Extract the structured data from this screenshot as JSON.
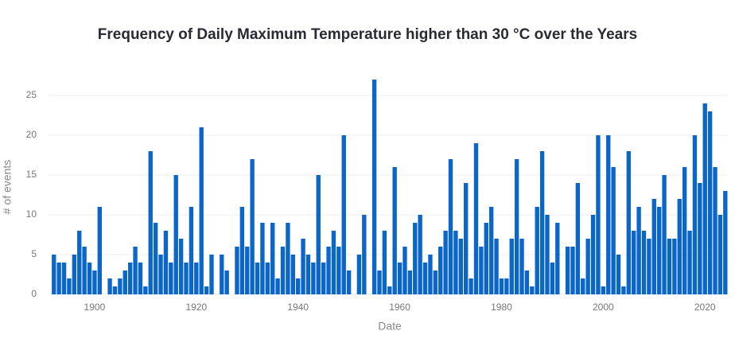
{
  "chart_data": {
    "type": "bar",
    "title": "Frequency of Daily Maximum Temperature higher than 30 °C  over the Years",
    "x_label": "Date",
    "y_label": "# of events",
    "color": "#0a66c8",
    "x": [
      1892,
      1893,
      1894,
      1895,
      1896,
      1897,
      1898,
      1899,
      1900,
      1901,
      1903,
      1904,
      1905,
      1906,
      1907,
      1908,
      1909,
      1910,
      1911,
      1912,
      1913,
      1914,
      1915,
      1916,
      1917,
      1918,
      1919,
      1920,
      1921,
      1922,
      1923,
      1925,
      1926,
      1928,
      1929,
      1930,
      1931,
      1932,
      1933,
      1934,
      1935,
      1936,
      1937,
      1938,
      1939,
      1940,
      1941,
      1942,
      1943,
      1944,
      1945,
      1946,
      1947,
      1948,
      1949,
      1950,
      1952,
      1953,
      1955,
      1956,
      1957,
      1958,
      1959,
      1960,
      1961,
      1962,
      1963,
      1964,
      1965,
      1966,
      1967,
      1968,
      1969,
      1970,
      1971,
      1972,
      1973,
      1974,
      1975,
      1976,
      1977,
      1978,
      1979,
      1980,
      1981,
      1982,
      1983,
      1984,
      1985,
      1986,
      1987,
      1988,
      1989,
      1990,
      1991,
      1993,
      1994,
      1995,
      1996,
      1997,
      1998,
      1999,
      2000,
      2001,
      2002,
      2003,
      2004,
      2005,
      2006,
      2007,
      2008,
      2009,
      2010,
      2011,
      2012,
      2013,
      2014,
      2015,
      2016,
      2017,
      2018,
      2019,
      2020,
      2021,
      2022,
      2023,
      2024
    ],
    "values": [
      5,
      4,
      4,
      2,
      5,
      8,
      6,
      4,
      3,
      11,
      2,
      1,
      2,
      3,
      4,
      6,
      4,
      1,
      18,
      9,
      5,
      8,
      4,
      15,
      7,
      4,
      11,
      4,
      21,
      1,
      5,
      5,
      3,
      6,
      11,
      6,
      17,
      4,
      9,
      4,
      9,
      2,
      6,
      9,
      5,
      2,
      7,
      5,
      4,
      15,
      4,
      6,
      8,
      6,
      20,
      3,
      5,
      10,
      27,
      3,
      8,
      1,
      16,
      4,
      6,
      3,
      9,
      10,
      4,
      5,
      3,
      6,
      8,
      17,
      8,
      7,
      14,
      2,
      19,
      6,
      9,
      11,
      7,
      2,
      2,
      7,
      17,
      7,
      3,
      1,
      11,
      18,
      10,
      4,
      9,
      6,
      6,
      14,
      2,
      7,
      10,
      20,
      1,
      20,
      16,
      5,
      1,
      18,
      8,
      11,
      8,
      7,
      12,
      11,
      15,
      7,
      7,
      12,
      16,
      8,
      20,
      14,
      24,
      23,
      16,
      10,
      13
    ],
    "xlim": [
      1891.1,
      2024.5
    ],
    "ylim": [
      0,
      27.4
    ],
    "xticks": [
      1900,
      1920,
      1940,
      1960,
      1980,
      2000,
      2020
    ],
    "yticks": [
      0,
      5,
      10,
      15,
      20,
      25
    ],
    "grid": true
  }
}
